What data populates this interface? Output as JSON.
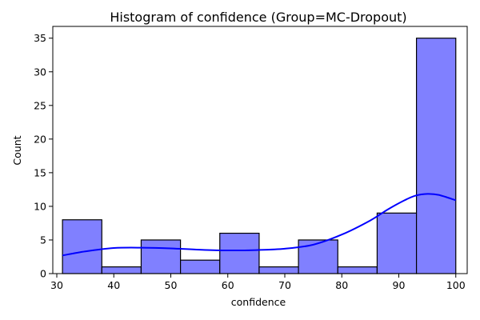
{
  "chart_data": {
    "type": "bar",
    "title": "Histogram of confidence (Group=MC-Dropout)",
    "xlabel": "confidence",
    "ylabel": "Count",
    "bin_edges": [
      31.0,
      37.9,
      44.8,
      51.7,
      58.6,
      65.5,
      72.4,
      79.3,
      86.2,
      93.1,
      100.0
    ],
    "values": [
      8,
      1,
      5,
      2,
      6,
      1,
      5,
      1,
      9,
      35
    ],
    "xlim": [
      29.3,
      102.0
    ],
    "ylim": [
      0,
      36.75
    ],
    "xticks": [
      30,
      40,
      50,
      60,
      70,
      80,
      90,
      100
    ],
    "yticks": [
      0,
      5,
      10,
      15,
      20,
      25,
      30,
      35
    ],
    "kde": {
      "x": [
        31,
        35,
        40,
        45,
        50,
        55,
        60,
        65,
        70,
        75,
        80,
        85,
        88,
        91,
        93,
        95,
        97,
        100
      ],
      "y": [
        2.7,
        3.3,
        3.8,
        3.85,
        3.75,
        3.55,
        3.45,
        3.5,
        3.7,
        4.3,
        5.8,
        7.9,
        9.5,
        10.9,
        11.6,
        11.85,
        11.7,
        10.9
      ]
    },
    "grid": false,
    "colors": {
      "bar_fill": "#8080ff",
      "bar_edge": "#000000",
      "kde_line": "#0000ff"
    }
  }
}
